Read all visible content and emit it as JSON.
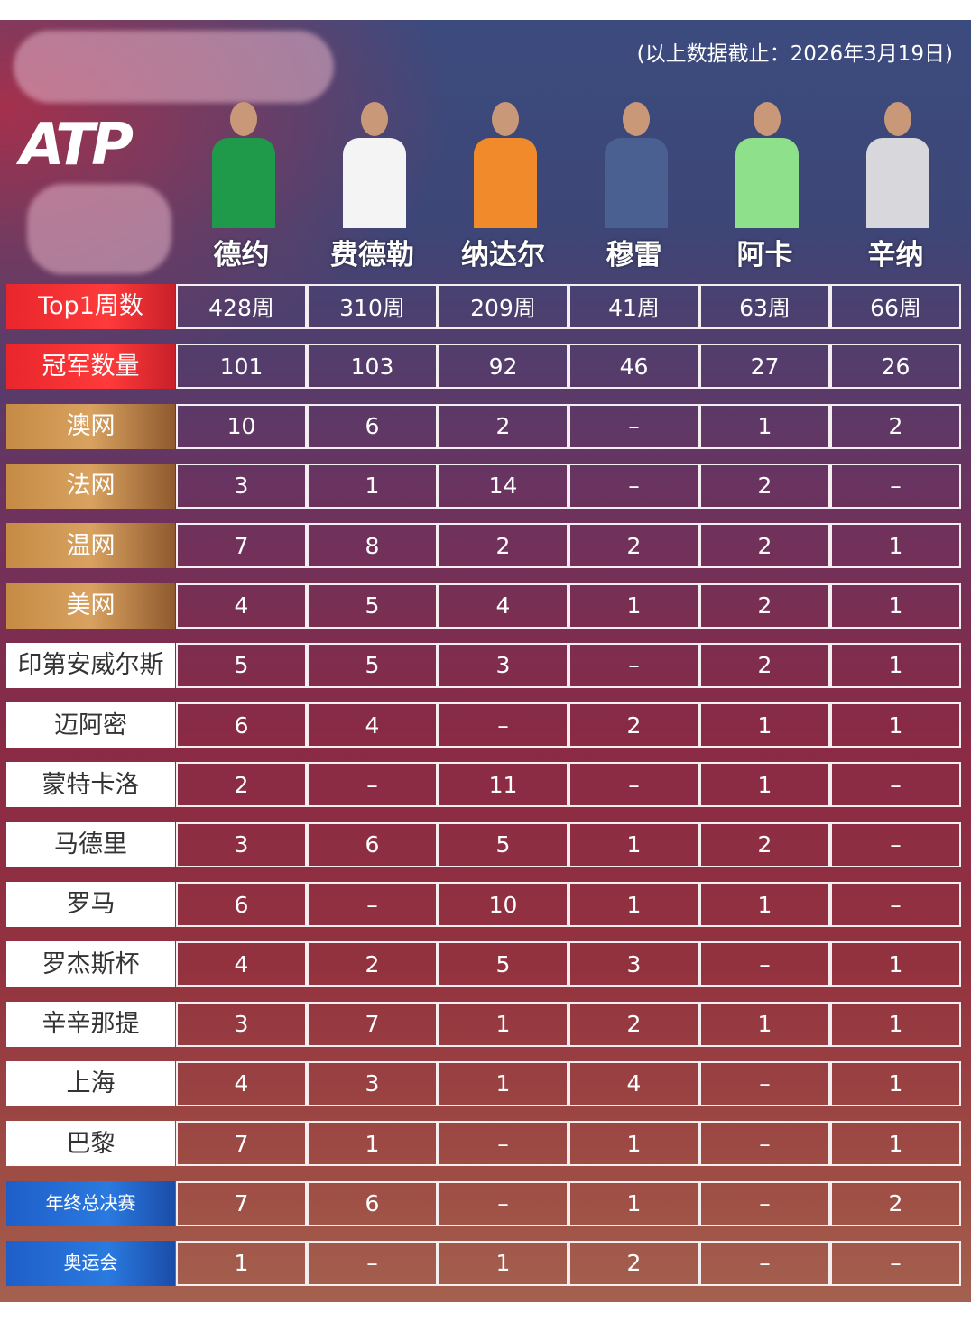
{
  "note": "(以上数据截止：2026年3月19日)",
  "logo": "ATP",
  "colors": {
    "header_red": "#e8262c",
    "slam_gold": "#c58b45",
    "finals_blue": "#1f5ec8"
  },
  "players": [
    {
      "name": "德约",
      "shirt": "#1f9a4a"
    },
    {
      "name": "费德勒",
      "shirt": "#f4f4f4"
    },
    {
      "name": "纳达尔",
      "shirt": "#f08a2a"
    },
    {
      "name": "穆雷",
      "shirt": "#4a6090"
    },
    {
      "name": "阿卡",
      "shirt": "#8ee08a"
    },
    {
      "name": "辛纳",
      "shirt": "#d8d8dc"
    }
  ],
  "rows": [
    {
      "label": "Top1周数",
      "style": "red",
      "values": [
        "428周",
        "310周",
        "209周",
        "41周",
        "63周",
        "66周"
      ]
    },
    {
      "label": "冠军数量",
      "style": "red",
      "values": [
        "101",
        "103",
        "92",
        "46",
        "27",
        "26"
      ]
    },
    {
      "label": "澳网",
      "style": "gold",
      "values": [
        "10",
        "6",
        "2",
        "–",
        "1",
        "2"
      ]
    },
    {
      "label": "法网",
      "style": "gold",
      "values": [
        "3",
        "1",
        "14",
        "–",
        "2",
        "–"
      ]
    },
    {
      "label": "温网",
      "style": "gold",
      "values": [
        "7",
        "8",
        "2",
        "2",
        "2",
        "1"
      ]
    },
    {
      "label": "美网",
      "style": "gold",
      "values": [
        "4",
        "5",
        "4",
        "1",
        "2",
        "1"
      ]
    },
    {
      "label": "印第安威尔斯",
      "style": "white small",
      "values": [
        "5",
        "5",
        "3",
        "–",
        "2",
        "1"
      ]
    },
    {
      "label": "迈阿密",
      "style": "white",
      "values": [
        "6",
        "4",
        "–",
        "2",
        "1",
        "1"
      ]
    },
    {
      "label": "蒙特卡洛",
      "style": "white",
      "values": [
        "2",
        "–",
        "11",
        "–",
        "1",
        "–"
      ]
    },
    {
      "label": "马德里",
      "style": "white",
      "values": [
        "3",
        "6",
        "5",
        "1",
        "2",
        "–"
      ]
    },
    {
      "label": "罗马",
      "style": "white",
      "values": [
        "6",
        "–",
        "10",
        "1",
        "1",
        "–"
      ]
    },
    {
      "label": "罗杰斯杯",
      "style": "white",
      "values": [
        "4",
        "2",
        "5",
        "3",
        "–",
        "1"
      ]
    },
    {
      "label": "辛辛那提",
      "style": "white",
      "values": [
        "3",
        "7",
        "1",
        "2",
        "1",
        "1"
      ]
    },
    {
      "label": "上海",
      "style": "white",
      "values": [
        "4",
        "3",
        "1",
        "4",
        "–",
        "1"
      ]
    },
    {
      "label": "巴黎",
      "style": "white",
      "values": [
        "7",
        "1",
        "–",
        "1",
        "–",
        "1"
      ]
    },
    {
      "label": "年终总决赛",
      "style": "blue",
      "values": [
        "7",
        "6",
        "–",
        "1",
        "–",
        "2"
      ]
    },
    {
      "label": "奥运会",
      "style": "blue",
      "values": [
        "1",
        "–",
        "1",
        "2",
        "–",
        "–"
      ]
    }
  ]
}
